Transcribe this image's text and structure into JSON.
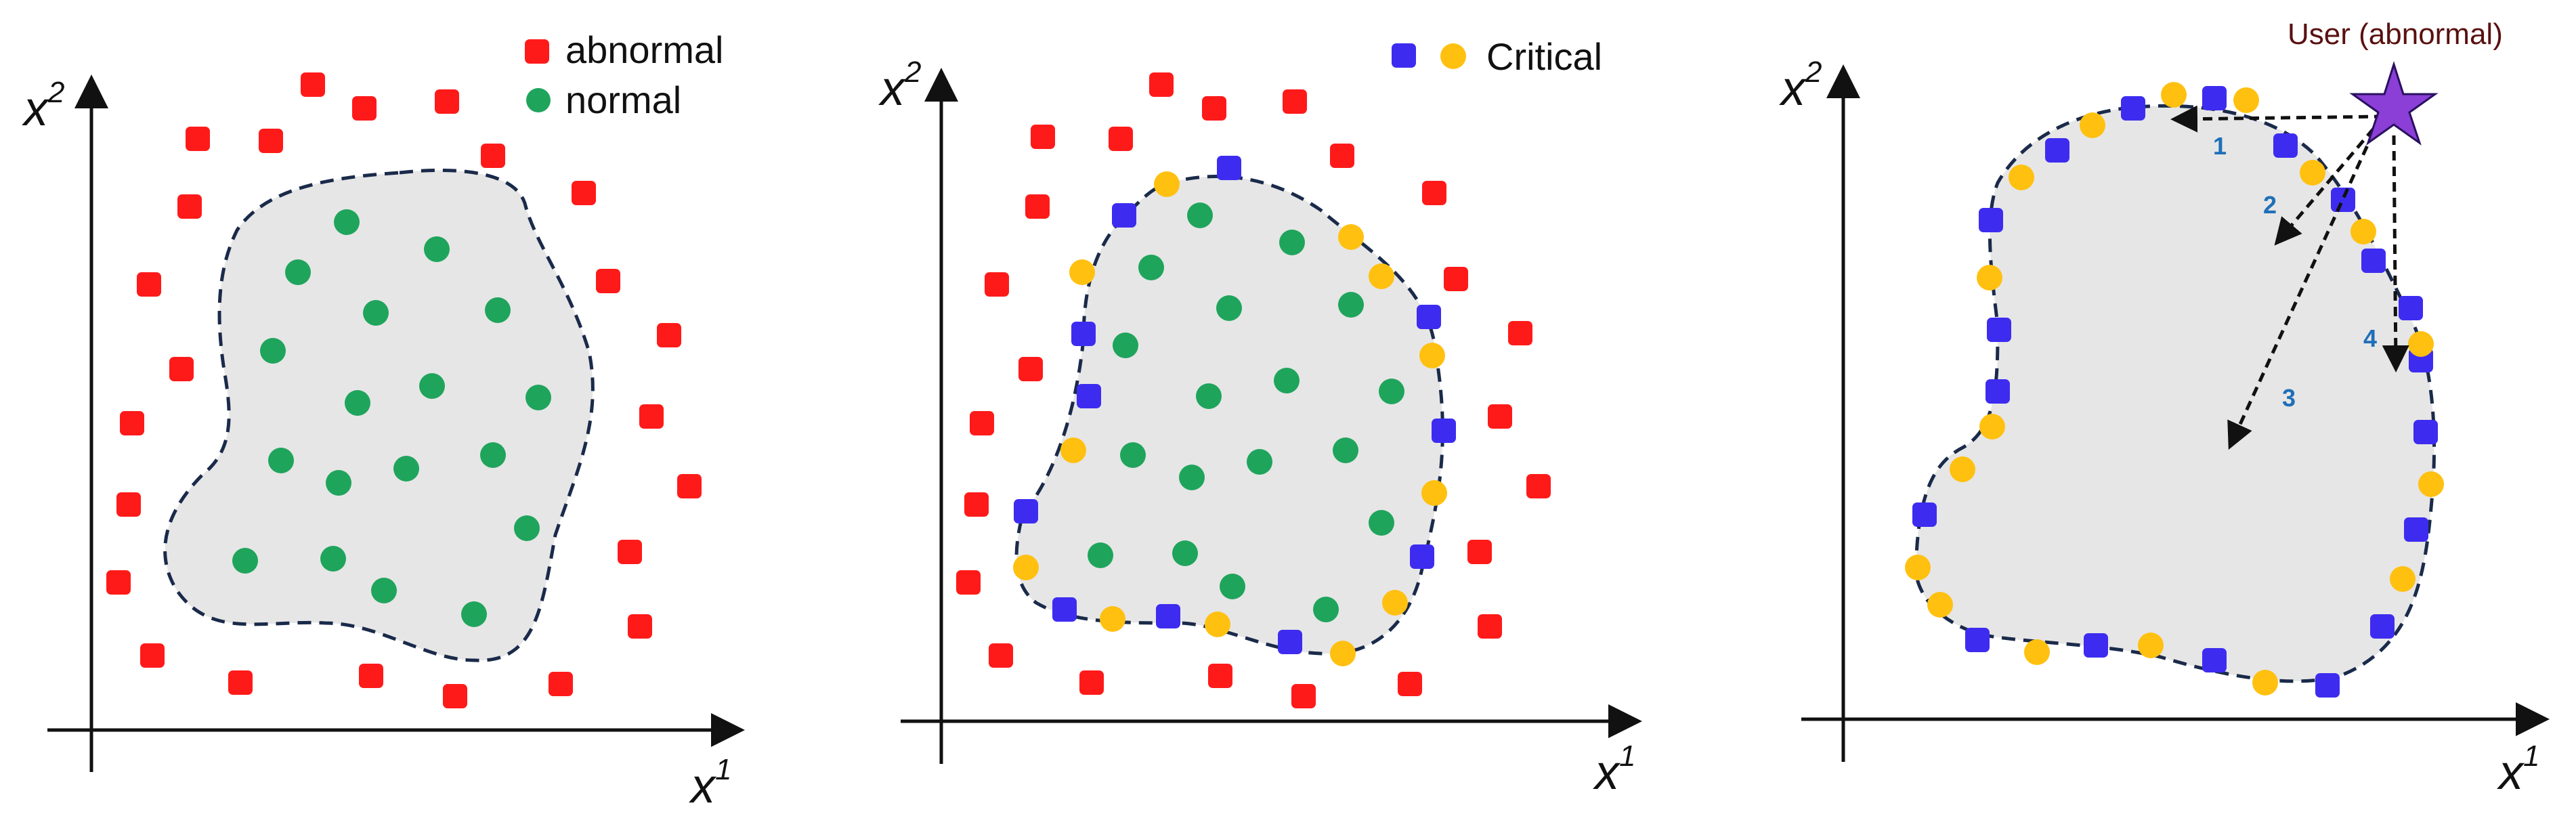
{
  "colors": {
    "abnormal": "#ff1a1a",
    "normal": "#1fa45c",
    "critical_square": "#3d2cf0",
    "critical_circle": "#ffc010",
    "region_fill": "#e6e6e6",
    "boundary": "#1a2a4a",
    "star": "#8b3fd6",
    "number": "#1f6fb8"
  },
  "panel1": {
    "legend_abnormal": "abnormal",
    "legend_normal": "normal",
    "x_axis": "x",
    "x_sup": "1",
    "y_axis": "x",
    "y_sup": "2"
  },
  "panel2": {
    "legend_critical": "Critical",
    "x_axis": "x",
    "x_sup": "1",
    "y_axis": "x",
    "y_sup": "2"
  },
  "panel3": {
    "user_label": "User (abnormal)",
    "arrow_labels": [
      "1",
      "2",
      "3",
      "4"
    ],
    "x_axis": "x",
    "x_sup": "1",
    "y_axis": "x",
    "y_sup": "2"
  },
  "icons": {
    "abnormal_marker": "red-square",
    "normal_marker": "green-circle",
    "critical_markers": [
      "blue-square",
      "yellow-circle"
    ],
    "user_marker": "purple-star"
  }
}
